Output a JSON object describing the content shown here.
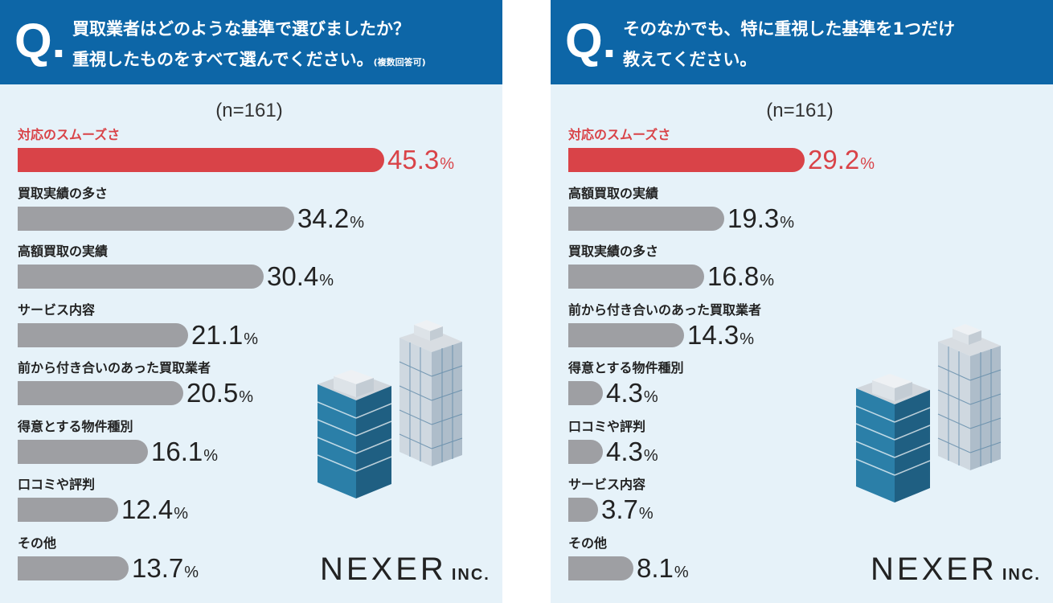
{
  "panels": [
    {
      "question": {
        "mark": "Q.",
        "line1": "買取業者はどのような基準で選びましたか？",
        "line2": "重視したものをすべて選んでください。",
        "note": "(複数回答可)"
      },
      "n_label": "(n=161)",
      "logo": {
        "name": "NEXER",
        "suffix": "INC."
      }
    },
    {
      "question": {
        "mark": "Q.",
        "line1": "そのなかでも、特に重視した基準を1つだけ",
        "line2": "教えてください。",
        "note": ""
      },
      "n_label": "(n=161)",
      "logo": {
        "name": "NEXER",
        "suffix": "INC."
      }
    }
  ],
  "colors": {
    "header": "#0d66a7",
    "highlight": "#d94348",
    "bar": "#9e9fa3",
    "background": "#e6f2f9"
  },
  "chart_data": [
    {
      "type": "bar",
      "orientation": "horizontal",
      "unit": "%",
      "categories": [
        "対応のスムーズさ",
        "買取実績の多さ",
        "高額買取の実績",
        "サービス内容",
        "前から付き合いのあった買取業者",
        "得意とする物件種別",
        "口コミや評判",
        "その他"
      ],
      "values": [
        45.3,
        34.2,
        30.4,
        21.1,
        20.5,
        16.1,
        12.4,
        13.7
      ],
      "value_labels": [
        "45.3",
        "34.2",
        "30.4",
        "21.1",
        "20.5",
        "16.1",
        "12.4",
        "13.7"
      ],
      "highlight_index": 0
    },
    {
      "type": "bar",
      "orientation": "horizontal",
      "unit": "%",
      "categories": [
        "対応のスムーズさ",
        "高額買取の実績",
        "買取実績の多さ",
        "前から付き合いのあった買取業者",
        "得意とする物件種別",
        "口コミや評判",
        "サービス内容",
        "その他"
      ],
      "values": [
        29.2,
        19.3,
        16.8,
        14.3,
        4.3,
        4.3,
        3.7,
        8.1
      ],
      "value_labels": [
        "29.2",
        "19.3",
        "16.8",
        "14.3",
        "4.3",
        "4.3",
        "3.7",
        "8.1"
      ],
      "highlight_index": 0
    }
  ]
}
